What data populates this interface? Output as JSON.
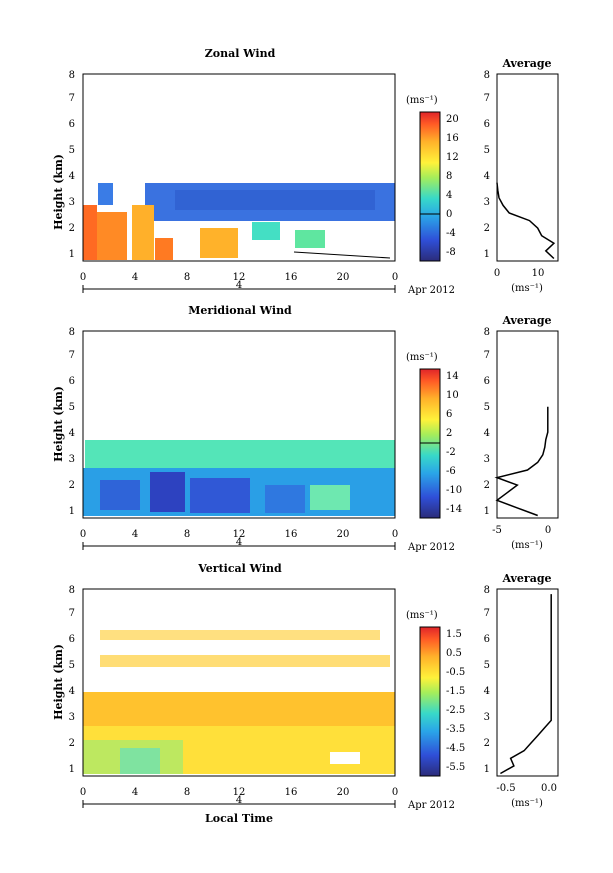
{
  "chart_data": [
    {
      "type": "heatmap",
      "title": "Zonal Wind",
      "ylabel": "Height (km)",
      "xlabel": "",
      "date_label": "Apr 2012",
      "day_label": "4",
      "colorbar_unit": "(ms⁻¹)",
      "colorbar_ticks": [
        "20",
        "16",
        "12",
        "8",
        "4",
        "0",
        "-4",
        "-8"
      ],
      "colorbar_range": [
        -10,
        22
      ],
      "xticks": [
        "0",
        "4",
        "8",
        "12",
        "16",
        "20",
        "0"
      ],
      "yticks": [
        "1",
        "2",
        "3",
        "4",
        "5",
        "6",
        "7",
        "8"
      ],
      "xlim": [
        0,
        24
      ],
      "ylim": [
        0.6,
        8
      ],
      "profile": {
        "title": "Average",
        "xlabel": "(ms⁻¹)",
        "xticks": [
          "0",
          "10"
        ],
        "xlim": [
          0,
          15
        ],
        "heights": [
          0.7,
          1.0,
          1.3,
          1.6,
          1.9,
          2.2,
          2.5,
          2.8,
          3.1,
          3.4,
          3.7
        ],
        "values": [
          14,
          12,
          14,
          11,
          10,
          8,
          3,
          1.5,
          0.5,
          0.2,
          0
        ]
      }
    },
    {
      "type": "heatmap",
      "title": "Meridional Wind",
      "ylabel": "Height (km)",
      "xlabel": "",
      "date_label": "Apr 2012",
      "day_label": "4",
      "colorbar_unit": "(ms⁻¹)",
      "colorbar_ticks": [
        "14",
        "10",
        "6",
        "2",
        "-2",
        "-6",
        "-10",
        "-14"
      ],
      "colorbar_range": [
        -16,
        16
      ],
      "xticks": [
        "0",
        "4",
        "8",
        "12",
        "16",
        "20",
        "0"
      ],
      "yticks": [
        "1",
        "2",
        "3",
        "4",
        "5",
        "6",
        "7",
        "8"
      ],
      "xlim": [
        0,
        24
      ],
      "ylim": [
        0.6,
        8
      ],
      "profile": {
        "title": "Average",
        "xlabel": "(ms⁻¹)",
        "xticks": [
          "-5",
          "0"
        ],
        "xlim": [
          -5,
          1
        ],
        "heights": [
          0.7,
          1.0,
          1.3,
          1.6,
          1.9,
          2.2,
          2.5,
          2.8,
          3.1,
          3.4,
          3.7,
          4.0,
          4.5,
          5.0
        ],
        "values": [
          -1,
          -3,
          -5,
          -4,
          -3,
          -5,
          -2,
          -1,
          -0.5,
          -0.3,
          -0.2,
          0,
          0,
          0
        ]
      }
    },
    {
      "type": "heatmap",
      "title": "Vertical Wind",
      "ylabel": "Height (km)",
      "xlabel": "Local Time",
      "date_label": "Apr 2012",
      "day_label": "4",
      "colorbar_unit": "(ms⁻¹)",
      "colorbar_ticks": [
        "1.5",
        "0.5",
        "-0.5",
        "-1.5",
        "-2.5",
        "-3.5",
        "-4.5",
        "-5.5"
      ],
      "colorbar_range": [
        -6,
        2
      ],
      "xticks": [
        "0",
        "4",
        "8",
        "12",
        "16",
        "20",
        "0"
      ],
      "yticks": [
        "1",
        "2",
        "3",
        "4",
        "5",
        "6",
        "7",
        "8"
      ],
      "xlim": [
        0,
        24
      ],
      "ylim": [
        0.6,
        8
      ],
      "profile": {
        "title": "Average",
        "xlabel": "(ms⁻¹)",
        "xticks": [
          "-0.5",
          "0.0"
        ],
        "xlim": [
          -0.8,
          0.1
        ],
        "heights": [
          0.7,
          1.0,
          1.3,
          1.6,
          1.9,
          2.2,
          2.5,
          2.8,
          3.1,
          3.4,
          4.0,
          5.0,
          6.0,
          7.0,
          7.8
        ],
        "values": [
          -0.75,
          -0.55,
          -0.6,
          -0.4,
          -0.3,
          -0.2,
          -0.1,
          0,
          0,
          0,
          0,
          0,
          0,
          0,
          0
        ]
      }
    }
  ]
}
